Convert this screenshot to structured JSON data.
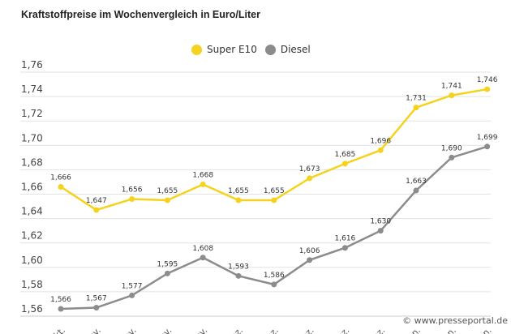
{
  "chart_data": {
    "type": "line",
    "title": "Kraftstoffpreise im Wochenvergleich in Euro/Liter",
    "categories": [
      "Okt.",
      "Nov.",
      "Nov.",
      "Nov.",
      "Nov.",
      "Dez.",
      "Dez.",
      "Dez.",
      "Dez.",
      "Dez.",
      "Jan.",
      "Jan.",
      "Jan."
    ],
    "series": [
      {
        "name": "Super E10",
        "color": "#f5d21e",
        "values": [
          1.666,
          1.647,
          1.656,
          1.655,
          1.668,
          1.655,
          1.655,
          1.673,
          1.685,
          1.696,
          1.731,
          1.741,
          1.746
        ]
      },
      {
        "name": "Diesel",
        "color": "#8c8c8c",
        "values": [
          1.566,
          1.567,
          1.577,
          1.595,
          1.608,
          1.593,
          1.586,
          1.606,
          1.616,
          1.63,
          1.663,
          1.69,
          1.699
        ]
      }
    ],
    "ylim": [
      1.56,
      1.76
    ],
    "yticks": [
      "1,56",
      "1,58",
      "1,60",
      "1,62",
      "1,64",
      "1,66",
      "1,68",
      "1,70",
      "1,72",
      "1,74",
      "1,76"
    ],
    "grid": true,
    "legend": "top-center",
    "decimal_separator": ","
  },
  "credit": "© www.presseportal.de"
}
